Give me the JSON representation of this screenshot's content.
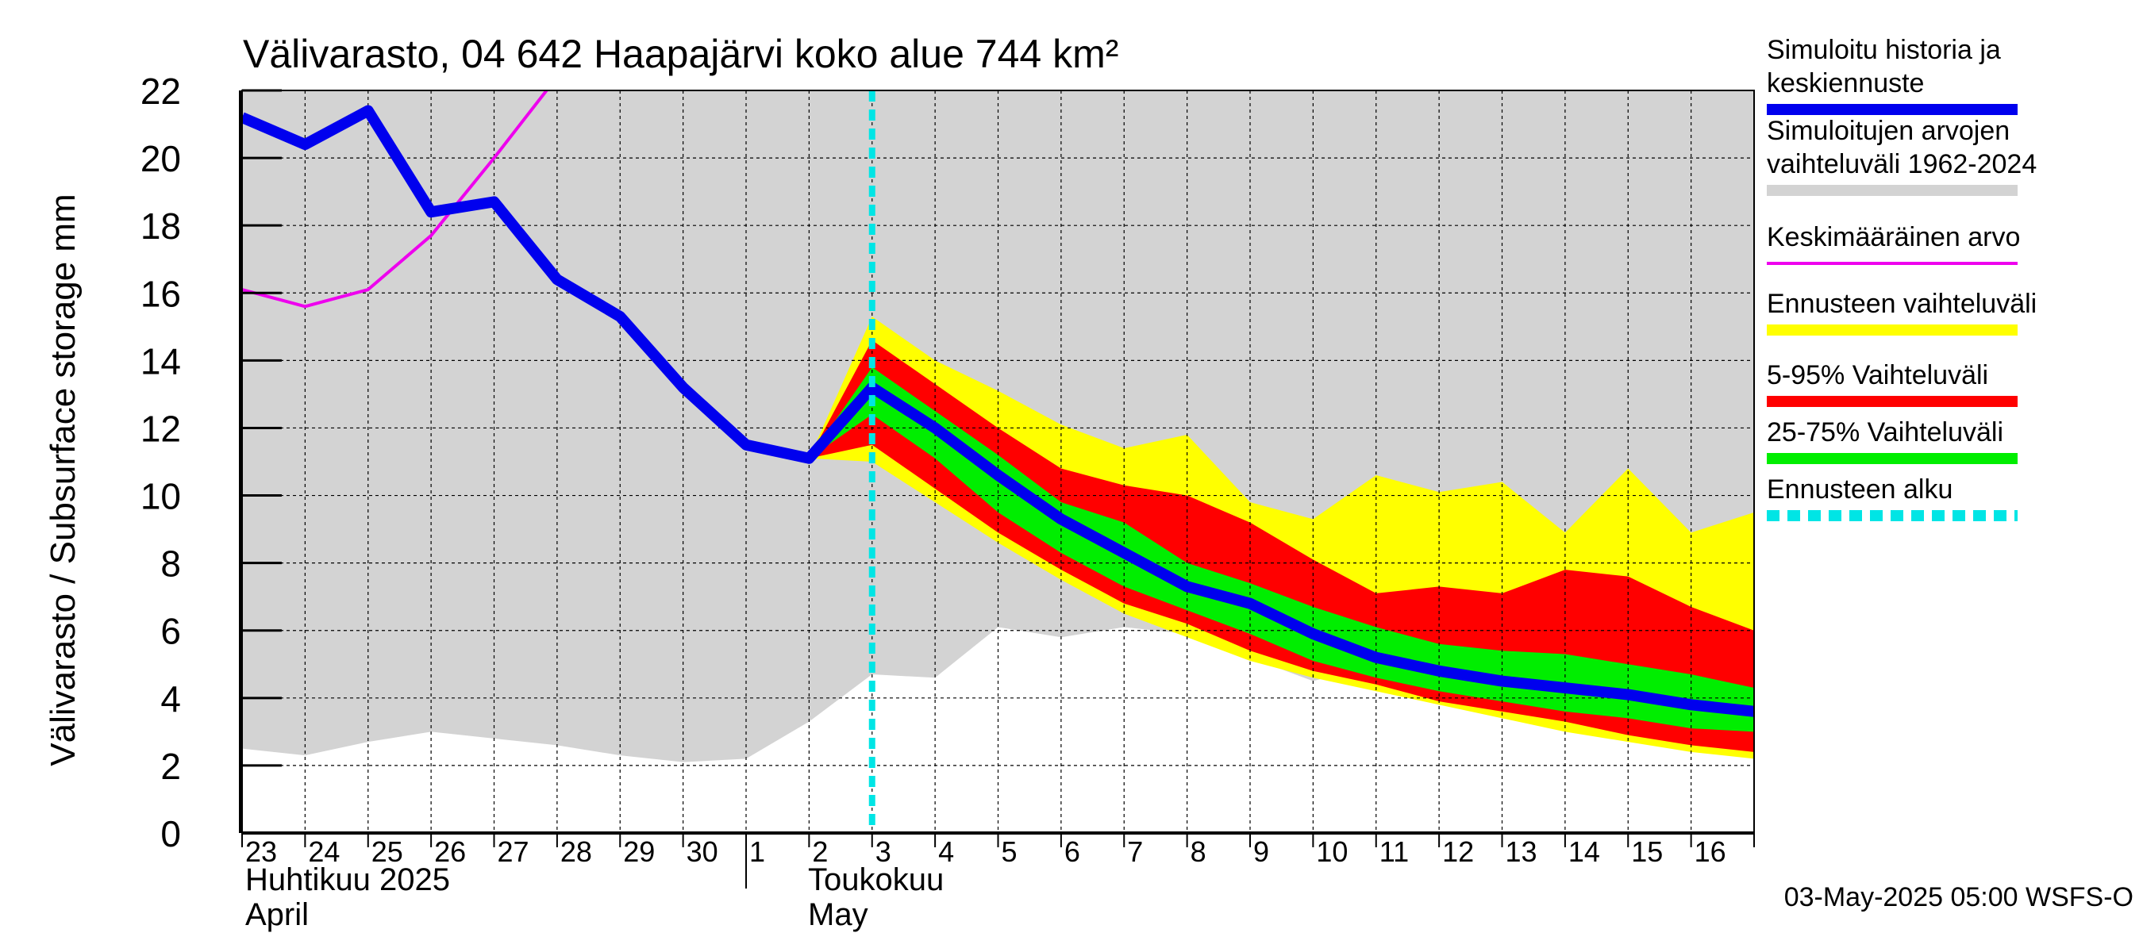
{
  "chart_data": {
    "type": "area",
    "title": "Välivarasto, 04 642 Haapajärvi koko alue 744 km²",
    "ylabel": "Välivarasto / Subsurface storage  mm",
    "ylim": [
      0,
      22
    ],
    "yticks": [
      0,
      2,
      4,
      6,
      8,
      10,
      12,
      14,
      16,
      18,
      20,
      22
    ],
    "grid": true,
    "legend_position": "right",
    "x_tick_labels": [
      "23",
      "24",
      "25",
      "26",
      "27",
      "28",
      "29",
      "30",
      "1",
      "2",
      "3",
      "4",
      "5",
      "6",
      "7",
      "8",
      "9",
      "10",
      "11",
      "12",
      "13",
      "14",
      "15",
      "16"
    ],
    "month_labels": [
      {
        "fi": "Huhtikuu  2025",
        "en": "April"
      },
      {
        "fi": "Toukokuu",
        "en": "May"
      }
    ],
    "x": [
      "2025-04-23",
      "2025-04-24",
      "2025-04-25",
      "2025-04-26",
      "2025-04-27",
      "2025-04-28",
      "2025-04-29",
      "2025-04-30",
      "2025-05-01",
      "2025-05-02",
      "2025-05-03",
      "2025-05-04",
      "2025-05-05",
      "2025-05-06",
      "2025-05-07",
      "2025-05-08",
      "2025-05-09",
      "2025-05-10",
      "2025-05-11",
      "2025-05-12",
      "2025-05-13",
      "2025-05-14",
      "2025-05-15",
      "2025-05-16",
      "2025-05-17"
    ],
    "forecast_start": "2025-05-03",
    "timestamp": "03-May-2025 05:00 WSFS-O",
    "series": [
      {
        "name": "Simuloitujen arvojen vaihteluväli 1962-2024",
        "kind": "band",
        "color": "#d3d3d3",
        "lower": [
          2.5,
          2.3,
          2.7,
          3.0,
          2.8,
          2.6,
          2.3,
          2.1,
          2.2,
          3.3,
          4.7,
          4.6,
          6.1,
          5.8,
          6.1,
          5.9,
          5.2,
          4.5,
          5.0,
          6.6,
          6.6,
          6.0,
          5.5,
          5.1,
          4.7
        ],
        "upper": [
          22,
          22,
          22,
          22,
          22,
          22,
          22,
          22,
          22,
          22,
          22,
          22,
          22,
          22,
          22,
          22,
          22,
          22,
          22,
          22,
          22,
          22,
          22,
          22,
          22
        ]
      },
      {
        "name": "Ennusteen vaihteluväli",
        "kind": "band",
        "color": "#ffff00",
        "lower": [
          null,
          null,
          null,
          null,
          null,
          null,
          null,
          null,
          null,
          11.1,
          11.0,
          9.8,
          8.6,
          7.5,
          6.5,
          5.8,
          5.1,
          4.6,
          4.2,
          3.8,
          3.4,
          3.0,
          2.7,
          2.4,
          2.2
        ],
        "upper": [
          null,
          null,
          null,
          null,
          null,
          null,
          null,
          null,
          null,
          11.1,
          15.3,
          14.0,
          13.1,
          12.1,
          11.4,
          11.8,
          9.8,
          9.3,
          10.6,
          10.1,
          10.4,
          8.9,
          10.8,
          8.9,
          9.5
        ]
      },
      {
        "name": "5-95% Vaihteluväli",
        "kind": "band",
        "color": "#ff0000",
        "lower": [
          null,
          null,
          null,
          null,
          null,
          null,
          null,
          null,
          null,
          11.1,
          11.5,
          10.2,
          8.9,
          7.8,
          6.8,
          6.2,
          5.4,
          4.8,
          4.4,
          3.9,
          3.6,
          3.3,
          2.9,
          2.6,
          2.4
        ],
        "upper": [
          null,
          null,
          null,
          null,
          null,
          null,
          null,
          null,
          null,
          11.1,
          14.6,
          13.3,
          12.0,
          10.8,
          10.3,
          10.0,
          9.2,
          8.1,
          7.1,
          7.3,
          7.1,
          7.8,
          7.6,
          6.7,
          6.0
        ]
      },
      {
        "name": "25-75% Vaihteluväli",
        "kind": "band",
        "color": "#00ee00",
        "lower": [
          null,
          null,
          null,
          null,
          null,
          null,
          null,
          null,
          null,
          11.1,
          12.4,
          11.1,
          9.5,
          8.3,
          7.3,
          6.6,
          5.9,
          5.1,
          4.6,
          4.2,
          3.9,
          3.6,
          3.4,
          3.1,
          3.0
        ],
        "upper": [
          null,
          null,
          null,
          null,
          null,
          null,
          null,
          null,
          null,
          11.1,
          13.8,
          12.5,
          11.2,
          9.8,
          9.2,
          8.0,
          7.4,
          6.7,
          6.1,
          5.6,
          5.4,
          5.3,
          5.0,
          4.7,
          4.3
        ]
      },
      {
        "name": "Keskimääräinen arvo",
        "kind": "line",
        "color": "#ee00ee",
        "values": [
          16.1,
          15.6,
          16.1,
          17.7,
          20.0,
          22.4,
          null,
          null,
          null,
          null,
          null,
          null,
          null,
          null,
          null,
          null,
          null,
          null,
          null,
          null,
          null,
          null,
          null,
          null,
          null
        ]
      },
      {
        "name": "Simuloitu historia ja keskiennuste",
        "kind": "line",
        "color": "#0000ee",
        "values": [
          21.2,
          20.4,
          21.4,
          18.4,
          18.7,
          16.4,
          15.3,
          13.2,
          11.5,
          11.1,
          13.2,
          12.0,
          10.6,
          9.3,
          8.3,
          7.3,
          6.8,
          5.9,
          5.2,
          4.8,
          4.5,
          4.3,
          4.1,
          3.8,
          3.6
        ]
      }
    ],
    "legend": [
      {
        "label": "Simuloitu historia ja keskiennuste",
        "color": "#0000ee",
        "style": "thick"
      },
      {
        "label": "Simuloitujen arvojen vaihteluväli 1962-2024",
        "color": "#d3d3d3",
        "style": "thick"
      },
      {
        "label": "Keskimääräinen arvo",
        "color": "#ee00ee",
        "style": "thin"
      },
      {
        "label": "Ennusteen vaihteluväli",
        "color": "#ffff00",
        "style": "thick"
      },
      {
        "label": "5-95% Vaihteluväli",
        "color": "#ff0000",
        "style": "thick"
      },
      {
        "label": "25-75% Vaihteluväli",
        "color": "#00ee00",
        "style": "thick"
      },
      {
        "label": "Ennusteen alku",
        "color": "#00e5e5",
        "style": "dashed"
      }
    ]
  }
}
